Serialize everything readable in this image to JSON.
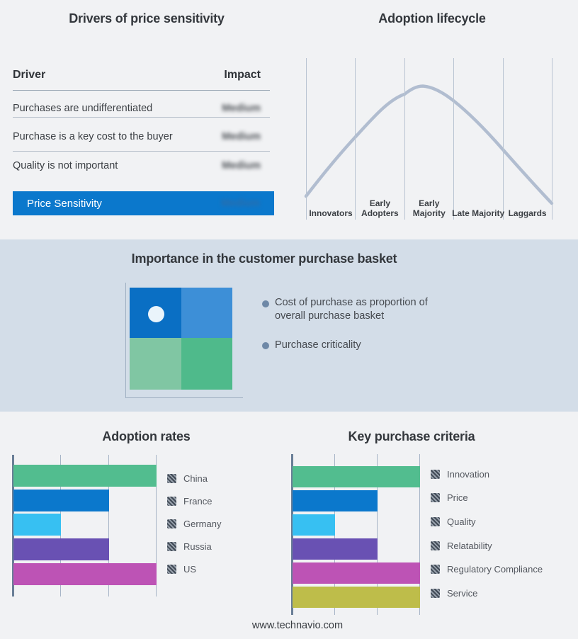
{
  "page": {
    "footer_link": "www.technavio.com"
  },
  "colors": {
    "page_bg": "#f1f2f4",
    "band_bg": "#d3dde8",
    "highlight_blue": "#0b78cc",
    "curve": "#b1bdd0",
    "bullet_dot": "#6e88a7",
    "quadrant": {
      "top_left": "#0a6fc4",
      "top_right": "#3d8fd7",
      "bottom_left": "#80c6a3",
      "bottom_right": "#4fba8b",
      "marker": "#eaf4fb"
    }
  },
  "drivers_panel": {
    "title": "Drivers of price sensitivity",
    "columns": {
      "driver": "Driver",
      "impact": "Impact"
    },
    "rows": [
      {
        "driver": "Purchases are undifferentiated",
        "impact": "Medium"
      },
      {
        "driver": "Purchase is a key cost to the buyer",
        "impact": "Medium"
      },
      {
        "driver": "Quality is not important",
        "impact": "Medium"
      }
    ],
    "highlight": {
      "driver": "Price Sensitivity",
      "impact": "Medium"
    },
    "impact_values_blurred": true
  },
  "basket_panel": {
    "title": "Importance in the customer purchase basket",
    "bullets": [
      "Cost of purchase as proportion of overall purchase basket",
      "Purchase criticality"
    ]
  },
  "chart_data": [
    {
      "type": "bar",
      "orientation": "horizontal",
      "title": "Adoption rates",
      "categories": [
        "China",
        "France",
        "Germany",
        "Russia",
        "US"
      ],
      "values": [
        3,
        2,
        1,
        2,
        3
      ],
      "xlim": [
        0,
        3
      ],
      "gridline_step": 1,
      "grid": true,
      "legend_position": "right",
      "bar_colors": [
        "#52bd8f",
        "#0b78cc",
        "#37c0f2",
        "#6951b3",
        "#bd53b5"
      ]
    },
    {
      "type": "bar",
      "orientation": "horizontal",
      "title": "Key purchase criteria",
      "categories": [
        "Innovation",
        "Price",
        "Quality",
        "Relatability",
        "Regulatory Compliance",
        "Service"
      ],
      "values": [
        3,
        2,
        1,
        2,
        3,
        3
      ],
      "xlim": [
        0,
        3
      ],
      "gridline_step": 1,
      "grid": true,
      "legend_position": "right",
      "bar_colors": [
        "#52bd8f",
        "#0b78cc",
        "#37c0f2",
        "#6951b3",
        "#bd53b5",
        "#bebd4a"
      ]
    },
    {
      "type": "line",
      "title": "Adoption lifecycle",
      "categories": [
        "Innovators",
        "Early Adopters",
        "Early Majority",
        "Late Majority",
        "Laggards"
      ],
      "description": "Bell-shaped adoption curve rising from Innovators, peaking within Early Majority, declining through Laggards",
      "curve_points_norm": [
        [
          0,
          0.06
        ],
        [
          0.2,
          0.57
        ],
        [
          0.4,
          0.93
        ],
        [
          0.475,
          1.0
        ],
        [
          0.6,
          0.87
        ],
        [
          0.8,
          0.46
        ],
        [
          1,
          0.0
        ]
      ],
      "ylim": [
        0,
        1
      ],
      "grid": "vertical category separators",
      "line_color": "#b1bdd0"
    }
  ]
}
